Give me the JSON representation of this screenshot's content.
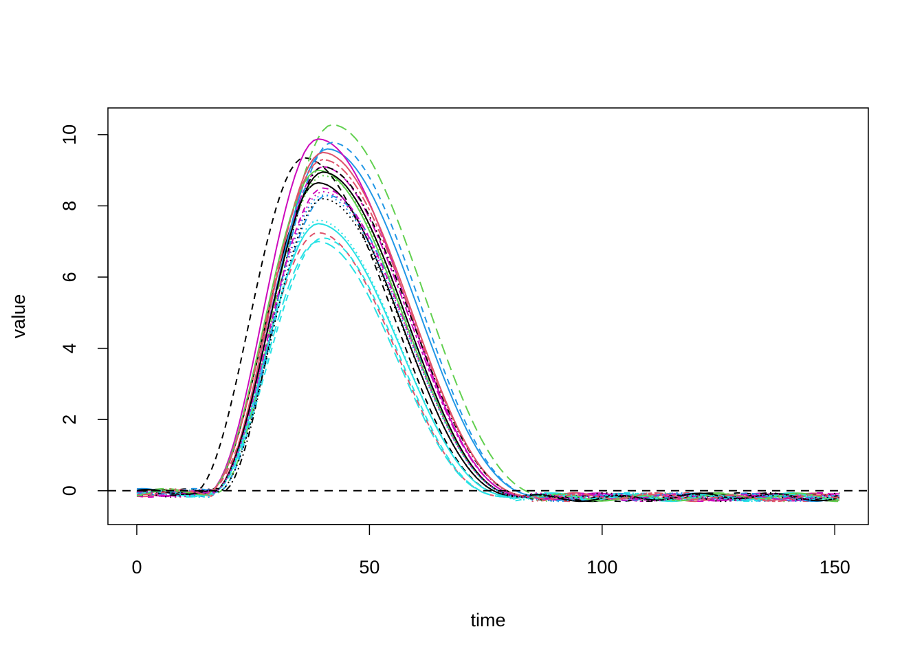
{
  "chart_data": {
    "type": "line",
    "title": "",
    "xlabel": "time",
    "ylabel": "value",
    "xlim": [
      -6.2,
      157.2
    ],
    "ylim": [
      -0.95,
      10.75
    ],
    "xticks": [
      0,
      50,
      100,
      150
    ],
    "yticks": [
      0,
      2,
      4,
      6,
      8,
      10
    ],
    "grid": false,
    "legend": "none",
    "reference_line": {
      "y": 0,
      "style": "dashed",
      "color": "#000000"
    },
    "curve_model": {
      "x_start": 0,
      "x_end": 151,
      "x_step": 1,
      "description": "Each curve is a skewed peak: value rises from baseline near time 14 to a peak, then decays to a slightly negative baseline after time ~85."
    },
    "series": [
      {
        "color": "#000000",
        "dash": "solid",
        "peak_x": 39,
        "peak_y": 8.65,
        "start": 15,
        "end": 83
      },
      {
        "color": "#DF536B",
        "dash": "dashed",
        "peak_x": 39,
        "peak_y": 7.25,
        "start": 15,
        "end": 80
      },
      {
        "color": "#61D04F",
        "dash": "dotted",
        "peak_x": 40,
        "peak_y": 8.85,
        "start": 16,
        "end": 84
      },
      {
        "color": "#2297E6",
        "dash": "dashdot",
        "peak_x": 41,
        "peak_y": 8.3,
        "start": 16,
        "end": 84
      },
      {
        "color": "#28E2E5",
        "dash": "longdash",
        "peak_x": 39,
        "peak_y": 7.0,
        "start": 16,
        "end": 80
      },
      {
        "color": "#CD0BBC",
        "dash": "twodash",
        "peak_x": 40,
        "peak_y": 9.1,
        "start": 16,
        "end": 85
      },
      {
        "color": "#000000",
        "dash": "dashed",
        "peak_x": 36,
        "peak_y": 9.35,
        "start": 12,
        "end": 82
      },
      {
        "color": "#61D04F",
        "dash": "longdash",
        "peak_x": 42,
        "peak_y": 10.28,
        "start": 17,
        "end": 90
      },
      {
        "color": "#2297E6",
        "dash": "solid",
        "peak_x": 41,
        "peak_y": 9.6,
        "start": 16,
        "end": 88
      },
      {
        "color": "#CD0BBC",
        "dash": "solid",
        "peak_x": 39,
        "peak_y": 9.88,
        "start": 15,
        "end": 85
      },
      {
        "color": "#DF536B",
        "dash": "solid",
        "peak_x": 40,
        "peak_y": 9.5,
        "start": 16,
        "end": 86
      },
      {
        "color": "#28E2E5",
        "dash": "solid",
        "peak_x": 39,
        "peak_y": 7.5,
        "start": 16,
        "end": 82
      },
      {
        "color": "#000000",
        "dash": "dashdot",
        "peak_x": 40,
        "peak_y": 9.1,
        "start": 18,
        "end": 86
      },
      {
        "color": "#2297E6",
        "dash": "dashed",
        "peak_x": 42,
        "peak_y": 9.78,
        "start": 17,
        "end": 88
      },
      {
        "color": "#DF536B",
        "dash": "dotted",
        "peak_x": 40,
        "peak_y": 8.95,
        "start": 16,
        "end": 84
      },
      {
        "color": "#28E2E5",
        "dash": "dashed",
        "peak_x": 40,
        "peak_y": 7.1,
        "start": 16,
        "end": 80
      },
      {
        "color": "#000000",
        "dash": "dotted",
        "peak_x": 40,
        "peak_y": 8.2,
        "start": 17,
        "end": 83
      },
      {
        "color": "#CD0BBC",
        "dash": "dashed",
        "peak_x": 40,
        "peak_y": 8.5,
        "start": 16,
        "end": 84
      },
      {
        "color": "#61D04F",
        "dash": "solid",
        "peak_x": 39,
        "peak_y": 9.0,
        "start": 15,
        "end": 84
      },
      {
        "color": "#000000",
        "dash": "solid",
        "peak_x": 40,
        "peak_y": 8.95,
        "start": 16,
        "end": 84
      },
      {
        "color": "#2297E6",
        "dash": "dotted",
        "peak_x": 40,
        "peak_y": 8.3,
        "start": 16,
        "end": 84
      },
      {
        "color": "#DF536B",
        "dash": "twodash",
        "peak_x": 40,
        "peak_y": 9.3,
        "start": 15,
        "end": 86
      },
      {
        "color": "#28E2E5",
        "dash": "dotted",
        "peak_x": 39,
        "peak_y": 7.6,
        "start": 16,
        "end": 82
      },
      {
        "color": "#CD0BBC",
        "dash": "dotted",
        "peak_x": 40,
        "peak_y": 8.4,
        "start": 16,
        "end": 84
      }
    ]
  }
}
